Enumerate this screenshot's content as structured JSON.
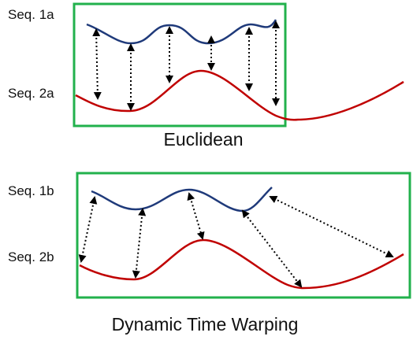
{
  "colors": {
    "background": "#ffffff",
    "frame": "#22b14c",
    "sequence_1": "#1f3a7a",
    "sequence_2": "#c00000",
    "link": "#000000"
  },
  "euclidean": {
    "label_seq1": "Seq. 1a",
    "label_seq2": "Seq. 2a",
    "caption": "Euclidean"
  },
  "dtw": {
    "label_seq1": "Seq. 1b",
    "label_seq2": "Seq. 2b",
    "caption": "Dynamic Time Warping"
  }
}
